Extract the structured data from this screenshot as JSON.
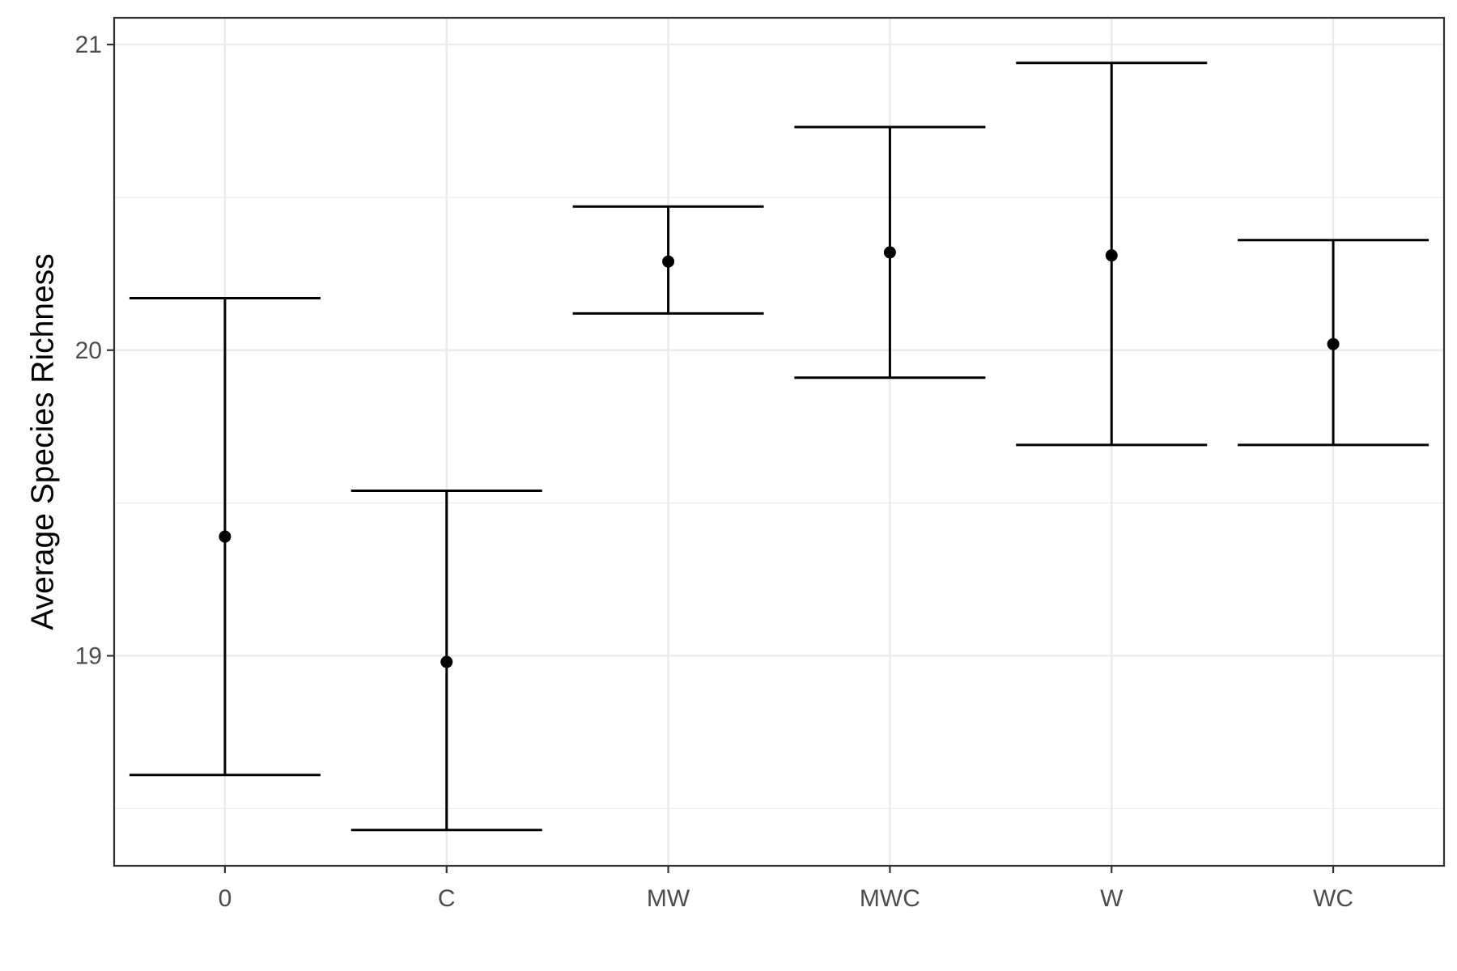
{
  "chart_data": {
    "type": "errorbar",
    "title": "",
    "xlabel": "",
    "ylabel": "Average Species Richness",
    "categories": [
      "0",
      "C",
      "MW",
      "MWC",
      "W",
      "WC"
    ],
    "points": [
      {
        "x": "0",
        "mean": 19.39,
        "lower": 18.61,
        "upper": 20.17
      },
      {
        "x": "C",
        "mean": 18.98,
        "lower": 18.43,
        "upper": 19.54
      },
      {
        "x": "MW",
        "mean": 20.29,
        "lower": 20.12,
        "upper": 20.47
      },
      {
        "x": "MWC",
        "mean": 20.32,
        "lower": 19.91,
        "upper": 20.73
      },
      {
        "x": "W",
        "mean": 20.31,
        "lower": 19.69,
        "upper": 20.94
      },
      {
        "x": "WC",
        "mean": 20.02,
        "lower": 19.69,
        "upper": 20.36
      }
    ],
    "ylim": [
      18.3129,
      21.0875
    ],
    "yticks": [
      19,
      20,
      21
    ],
    "ytick_labels": [
      "19",
      "20",
      "21"
    ],
    "y_minor_ticks": [
      18.5,
      19.5,
      20.5
    ],
    "grid": true,
    "legend": "none",
    "colors": {
      "marks": "#000000",
      "grid": "#ebebeb",
      "panel_border": "#333333",
      "tick_label": "#4d4d4d",
      "background": "#ffffff"
    }
  }
}
